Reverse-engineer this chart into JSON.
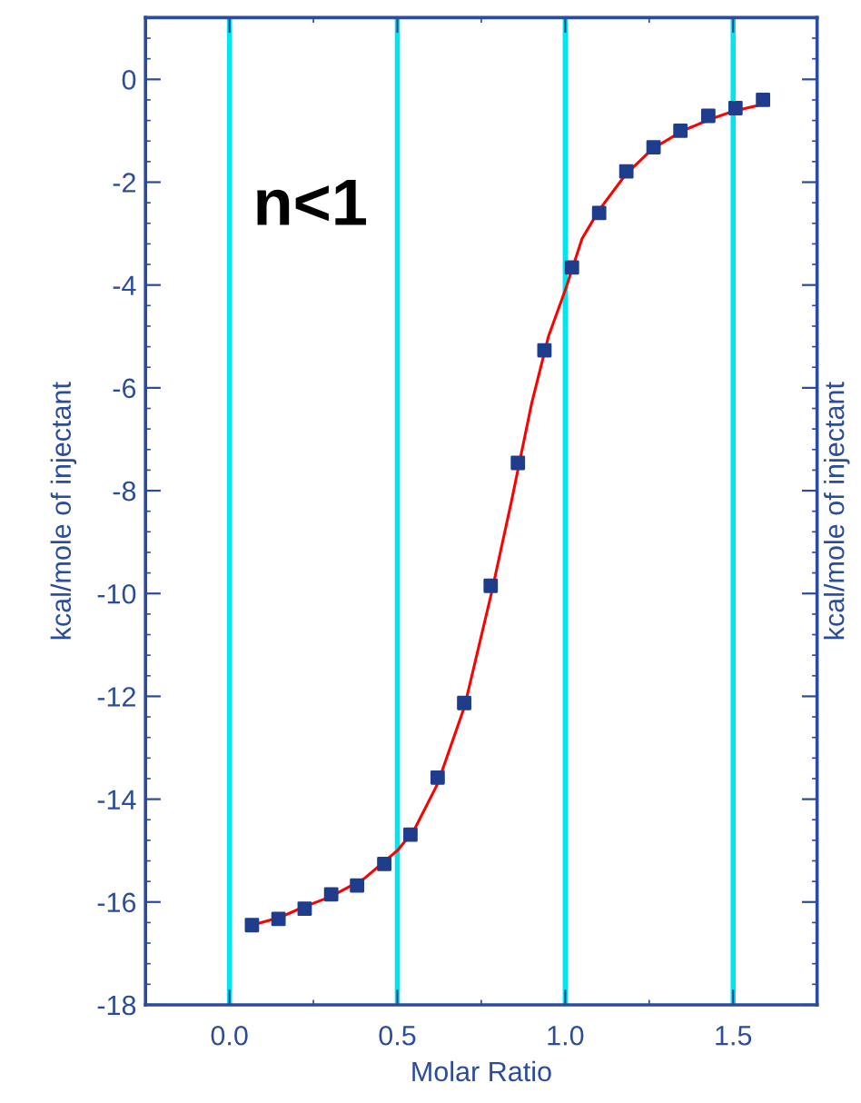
{
  "chart_data": {
    "type": "scatter",
    "xlabel": "Molar Ratio",
    "ylabel": "kcal/mole of injectant",
    "y2label": "kcal/mole of injectant",
    "annotations": [
      "n<1"
    ],
    "series": [
      {
        "color": "#1f3d8c",
        "marker": "square",
        "x": [
          0.067,
          0.146,
          0.224,
          0.303,
          0.38,
          0.461,
          0.539,
          0.62,
          0.699,
          0.778,
          0.859,
          0.938,
          1.02,
          1.101,
          1.182,
          1.263,
          1.343,
          1.426,
          1.507,
          1.589
        ],
        "values": [
          -16.45,
          -16.33,
          -16.13,
          -15.85,
          -15.68,
          -15.26,
          -14.69,
          -13.58,
          -12.13,
          -9.85,
          -7.46,
          -5.27,
          -3.66,
          -2.6,
          -1.79,
          -1.32,
          -1.0,
          -0.71,
          -0.56,
          -0.4
        ]
      },
      {
        "type": "line",
        "color": "#ff0000",
        "x": [
          0.067,
          0.15,
          0.22,
          0.3,
          0.4,
          0.5,
          0.55,
          0.62,
          0.7,
          0.78,
          0.84,
          0.9,
          0.95,
          1.0,
          1.05,
          1.1,
          1.18,
          1.26,
          1.35,
          1.43,
          1.5,
          1.59
        ],
        "values": [
          -16.45,
          -16.3,
          -16.1,
          -15.9,
          -15.55,
          -15.0,
          -14.6,
          -13.7,
          -12.2,
          -10.0,
          -8.2,
          -6.3,
          -5.0,
          -4.1,
          -3.1,
          -2.55,
          -1.85,
          -1.35,
          -1.0,
          -0.78,
          -0.62,
          -0.48
        ]
      }
    ],
    "xlim": [
      -0.25,
      1.75
    ],
    "xticks": [
      {
        "value": 0,
        "label": "0.0"
      },
      {
        "value": 0.5,
        "label": "0.5"
      },
      {
        "value": 1,
        "label": "1.0"
      },
      {
        "value": 1.5,
        "label": "1.5"
      }
    ],
    "ylim": [
      -18,
      1.2
    ],
    "yticks": [
      -18,
      -16,
      -14,
      -12,
      -10,
      -8,
      -6,
      -4,
      -2,
      0
    ],
    "grid": "x",
    "legend": false
  }
}
